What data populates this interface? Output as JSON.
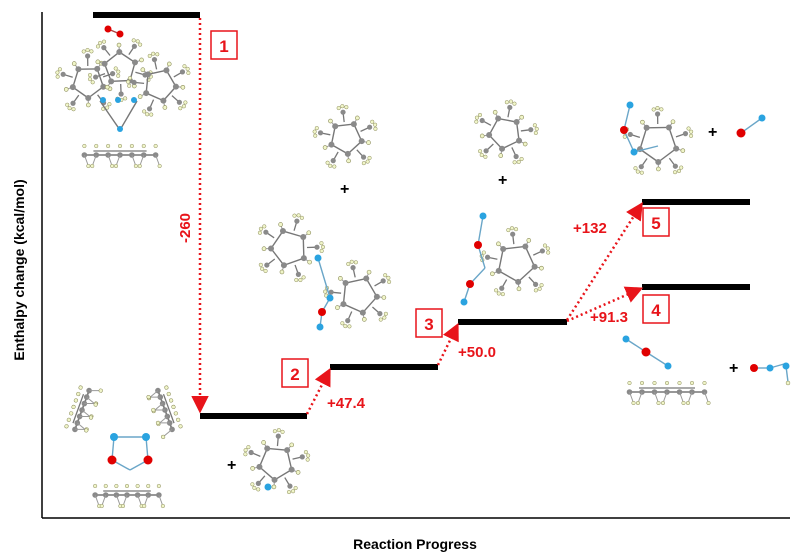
{
  "axes": {
    "ylabel": "Enthalpy change (kcal/mol)",
    "xlabel": "Reaction Progress"
  },
  "steps": [
    {
      "number": "1",
      "delta": "-260"
    },
    {
      "number": "2",
      "delta": "+47.4"
    },
    {
      "number": "3",
      "delta": "+50.0"
    },
    {
      "number": "4",
      "delta": "+91.3"
    },
    {
      "number": "5",
      "delta": "+132"
    }
  ],
  "symbols": {
    "plus": "+"
  },
  "colors": {
    "level": "#000000",
    "transition": "#e8141a",
    "label": "#e8141a",
    "carbon_atom": "#8a8a8a",
    "hydrogen_atom": "#f0f5c8",
    "oxygen_atom": "#e00000",
    "nitrogen_atom": "#2aa3e0"
  }
}
